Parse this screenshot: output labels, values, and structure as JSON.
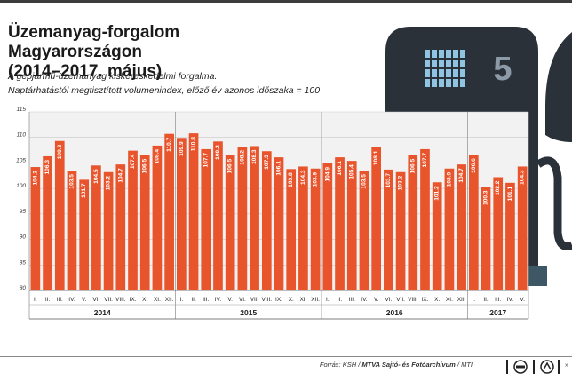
{
  "title_line1": "Üzemanyag-forgalom Magyarországon",
  "title_line2": "(2014–2017. május)",
  "subtitle1": "A gépjármű-üzemanyag kiskereskedelmi forgalma.",
  "subtitle2": "Naptárhatástól megtisztított volumenindex, előző év azonos időszaka = 100",
  "footer": {
    "prefix": "Forrás: KSH / ",
    "bold": "MTVA Sajtó- és Fotóarchívum",
    "suffix": " / MTI",
    "tail": "»"
  },
  "pump": {
    "display_digit": "5"
  },
  "colors": {
    "bar": "#e8552c",
    "plot_bg": "#f2f2f2",
    "pump": "#2b3138",
    "pump_grid": "#8fc4e2",
    "pump_digit": "#8c9aa8"
  },
  "chart_data": {
    "type": "bar",
    "ylim": [
      80,
      115
    ],
    "yticks": [
      80,
      85,
      90,
      95,
      100,
      105,
      110,
      115
    ],
    "grid": true,
    "months": [
      "I.",
      "II.",
      "III.",
      "IV.",
      "V.",
      "VI.",
      "VII.",
      "VIII.",
      "IX.",
      "X.",
      "XI.",
      "XII."
    ],
    "years": [
      {
        "label": "2014",
        "values": [
          104.2,
          106.3,
          109.3,
          103.5,
          101.7,
          104.5,
          103.2,
          104.7,
          107.4,
          106.5,
          108.4,
          110.7
        ]
      },
      {
        "label": "2015",
        "values": [
          109.9,
          110.8,
          107.7,
          109.2,
          106.5,
          108.2,
          108.3,
          107.3,
          106.1,
          103.8,
          104.3,
          103.9
        ]
      },
      {
        "label": "2016",
        "values": [
          104.9,
          106.1,
          105.4,
          103.5,
          108.1,
          103.7,
          103.2,
          106.5,
          107.7,
          101.2,
          103.9,
          104.7
        ]
      },
      {
        "label": "2017",
        "values": [
          106.6,
          100.3,
          102.2,
          101.1,
          104.3
        ]
      }
    ]
  }
}
